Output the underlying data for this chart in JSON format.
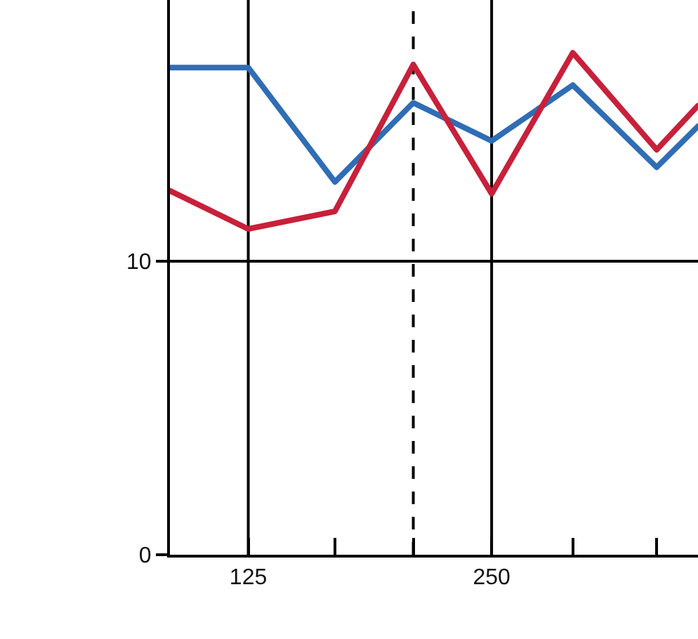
{
  "chart_data": {
    "type": "line",
    "x": [
      100,
      125,
      160,
      200,
      250,
      315,
      400,
      450
    ],
    "series": [
      {
        "color": "#2f6db5",
        "values": [
          16.6,
          16.6,
          12.7,
          15.4,
          14.1,
          16.0,
          13.2,
          14.6
        ]
      },
      {
        "color": "#c8203a",
        "values": [
          12.4,
          11.1,
          11.7,
          16.7,
          12.3,
          17.1,
          13.8,
          15.3
        ]
      }
    ],
    "log": "x",
    "xlim": [
      100,
      450
    ],
    "xticks": [
      125,
      {
        "value": 160,
        "label": null
      },
      {
        "value": 200,
        "label": null
      },
      250,
      {
        "value": 315,
        "label": null
      },
      {
        "value": 400,
        "label": null
      }
    ],
    "ylim": [
      0,
      18.9
    ],
    "yticks": [
      0,
      10
    ],
    "grid": "y",
    "marker": "none",
    "line_style": "solid",
    "ref_lines": [
      {
        "axis": "x",
        "value": 125,
        "line_style": "solid",
        "color": "#000000"
      },
      {
        "axis": "x",
        "value": 200,
        "line_style": "dashed",
        "color": "#000000"
      },
      {
        "axis": "x",
        "value": 250,
        "line_style": "solid",
        "color": "#000000"
      }
    ]
  }
}
